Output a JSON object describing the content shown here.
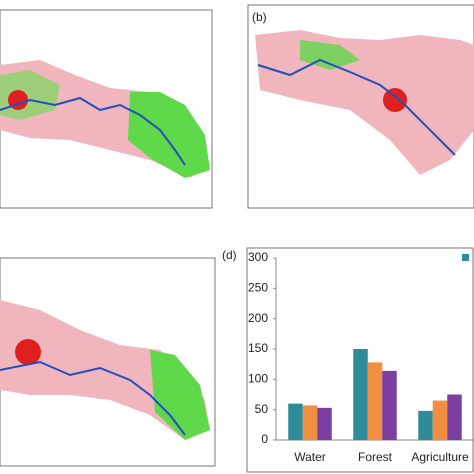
{
  "panel_labels": [
    "(b)",
    "(d)"
  ],
  "chart_data": {
    "type": "bar",
    "categories": [
      "Water",
      "Forest",
      "Agriculture"
    ],
    "series": [
      {
        "color": "#2e8b99",
        "values": [
          60,
          150,
          48
        ]
      },
      {
        "color": "#f28e3f",
        "values": [
          57,
          128,
          65
        ]
      },
      {
        "color": "#7b3fa0",
        "values": [
          53,
          114,
          75
        ]
      }
    ],
    "ylim": [
      0,
      300
    ],
    "yticks": [
      0,
      50,
      100,
      150,
      200,
      250,
      300
    ]
  }
}
